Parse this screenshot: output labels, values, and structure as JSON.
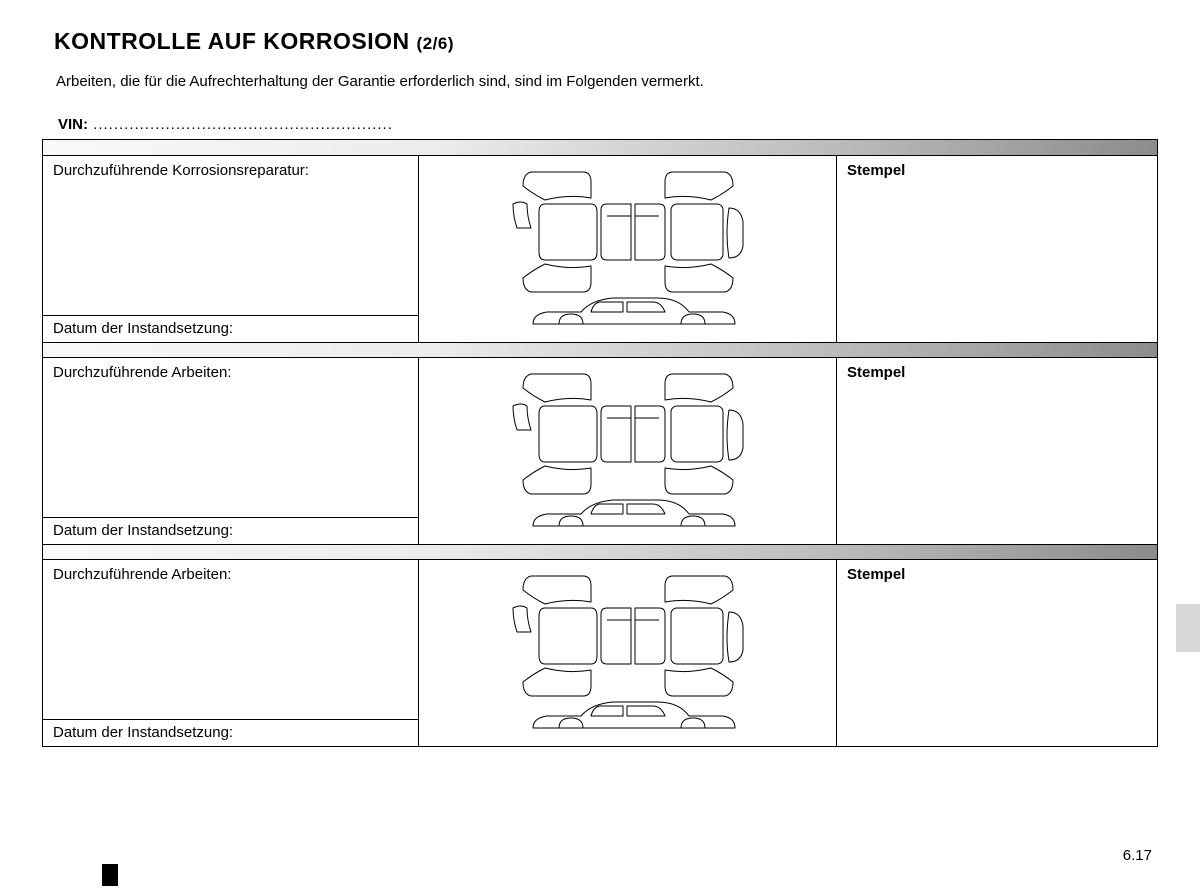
{
  "title_main": "KONTROLLE AUF KORROSION",
  "title_suffix": "(2/6)",
  "subtitle": "Arbeiten, die für die Aufrechterhaltung der Garantie erforderlich sind, sind im Folgenden vermerkt.",
  "vin_label": "VIN:",
  "vin_dots": " ..........................................................",
  "records": [
    {
      "work_label": "Durchzuführende Korrosionsreparatur:",
      "date_label": "Datum der Instandsetzung:",
      "stamp_label": "Stempel"
    },
    {
      "work_label": "Durchzuführende Arbeiten:",
      "date_label": "Datum der Instandsetzung:",
      "stamp_label": "Stempel"
    },
    {
      "work_label": "Durchzuführende Arbeiten:",
      "date_label": "Datum der Instandsetzung:",
      "stamp_label": "Stempel"
    }
  ],
  "page_number": "6.17",
  "diagram": {
    "stroke": "#000000",
    "stroke_width": 1,
    "fill": "none"
  }
}
